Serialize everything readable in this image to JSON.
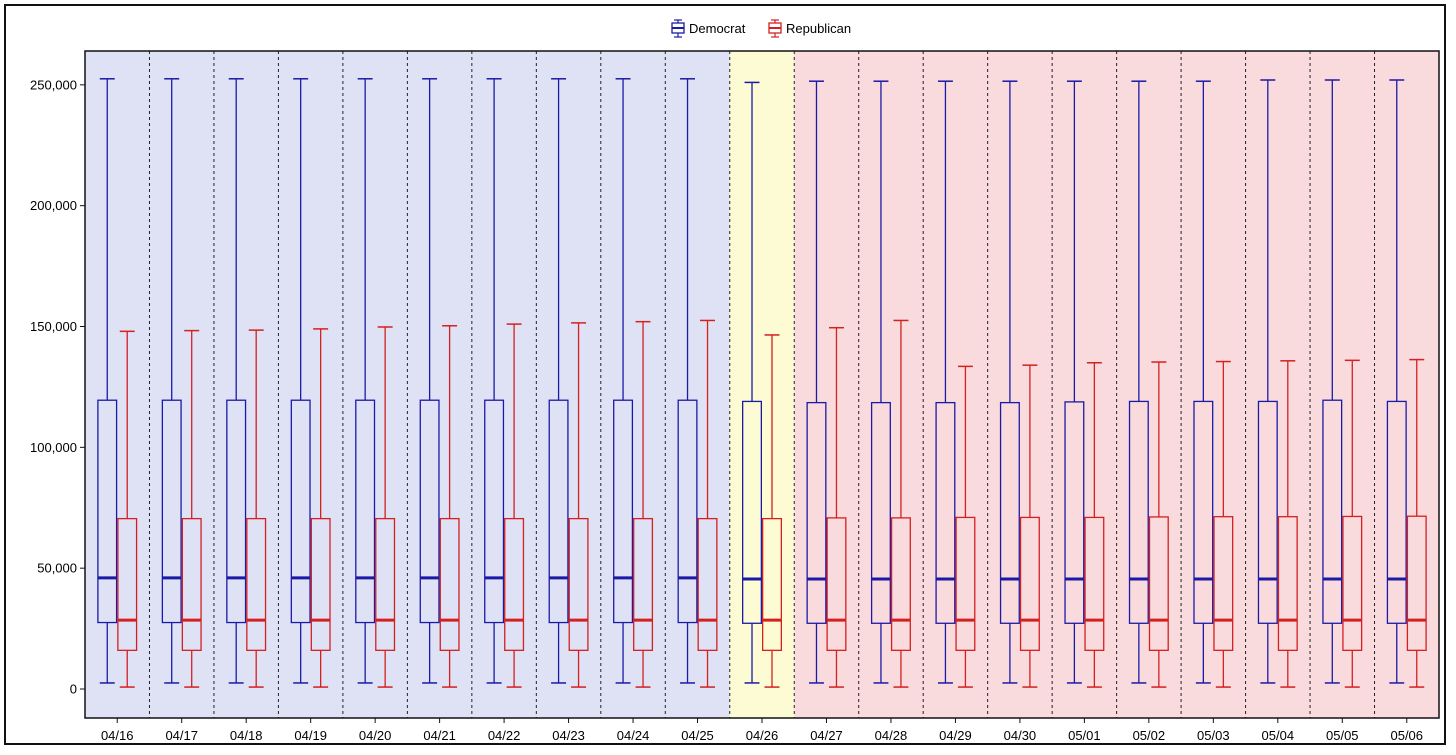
{
  "chart_data": {
    "type": "boxplot",
    "title": "",
    "xlabel": "",
    "ylabel": "",
    "ylim": [
      -12000,
      264000
    ],
    "yticks": [
      0,
      50000,
      100000,
      150000,
      200000,
      250000
    ],
    "ytick_labels": [
      "0",
      "50,000",
      "100,000",
      "150,000",
      "200,000",
      "250,000"
    ],
    "categories": [
      "04/16",
      "04/17",
      "04/18",
      "04/19",
      "04/20",
      "04/21",
      "04/22",
      "04/23",
      "04/24",
      "04/25",
      "04/26",
      "04/27",
      "04/28",
      "04/29",
      "04/30",
      "05/01",
      "05/02",
      "05/03",
      "05/04",
      "05/05",
      "05/06"
    ],
    "legend": {
      "placement": "top-center",
      "entries": [
        "Democrat",
        "Republican"
      ]
    },
    "background_bands": [
      {
        "from": "04/16",
        "to": "04/25",
        "color": "#dfe2f5"
      },
      {
        "from": "04/26",
        "to": "04/26",
        "color": "#fdfbd3"
      },
      {
        "from": "04/27",
        "to": "05/06",
        "color": "#f9dbdd"
      }
    ],
    "separator_lines": "dashed",
    "series": [
      {
        "name": "Democrat",
        "color": "#1a1aa6",
        "whisker_low": [
          2500,
          2500,
          2500,
          2500,
          2500,
          2500,
          2500,
          2500,
          2500,
          2500,
          2500,
          2500,
          2500,
          2500,
          2500,
          2500,
          2500,
          2500,
          2500,
          2500,
          2500
        ],
        "q1": [
          27500,
          27500,
          27500,
          27500,
          27500,
          27500,
          27500,
          27500,
          27500,
          27500,
          27200,
          27200,
          27200,
          27200,
          27200,
          27200,
          27200,
          27200,
          27200,
          27200,
          27200
        ],
        "median": [
          46000,
          46000,
          46000,
          46000,
          46000,
          46000,
          46000,
          46000,
          46000,
          46000,
          45500,
          45500,
          45500,
          45500,
          45500,
          45500,
          45500,
          45500,
          45500,
          45500,
          45500
        ],
        "q3": [
          119500,
          119500,
          119500,
          119500,
          119500,
          119500,
          119500,
          119500,
          119500,
          119500,
          119000,
          118500,
          118500,
          118500,
          118500,
          118800,
          119000,
          119000,
          119000,
          119500,
          119000
        ],
        "whisker_high": [
          252500,
          252500,
          252500,
          252500,
          252500,
          252500,
          252500,
          252500,
          252500,
          252500,
          251000,
          251500,
          251500,
          251500,
          251500,
          251500,
          251500,
          251500,
          252000,
          252000,
          252000
        ]
      },
      {
        "name": "Republican",
        "color": "#d42020",
        "whisker_low": [
          800,
          800,
          800,
          800,
          800,
          800,
          800,
          800,
          800,
          800,
          800,
          800,
          800,
          800,
          800,
          800,
          800,
          800,
          800,
          800,
          800
        ],
        "q1": [
          16000,
          16000,
          16000,
          16000,
          16000,
          16000,
          16000,
          16000,
          16000,
          16000,
          16000,
          16000,
          16000,
          16000,
          16000,
          16000,
          16000,
          16000,
          16000,
          16000,
          16000
        ],
        "median": [
          28500,
          28500,
          28500,
          28500,
          28500,
          28500,
          28500,
          28500,
          28500,
          28500,
          28500,
          28500,
          28500,
          28500,
          28500,
          28500,
          28500,
          28500,
          28500,
          28500,
          28500
        ],
        "q3": [
          70500,
          70500,
          70500,
          70500,
          70500,
          70500,
          70500,
          70500,
          70500,
          70500,
          70500,
          70800,
          70800,
          71000,
          71000,
          71000,
          71200,
          71300,
          71300,
          71400,
          71500
        ],
        "whisker_high": [
          148000,
          148300,
          148500,
          149000,
          149800,
          150300,
          151000,
          151500,
          152000,
          152500,
          146500,
          149500,
          152500,
          133500,
          134000,
          135000,
          135300,
          135500,
          135800,
          136000,
          136300
        ]
      }
    ]
  }
}
